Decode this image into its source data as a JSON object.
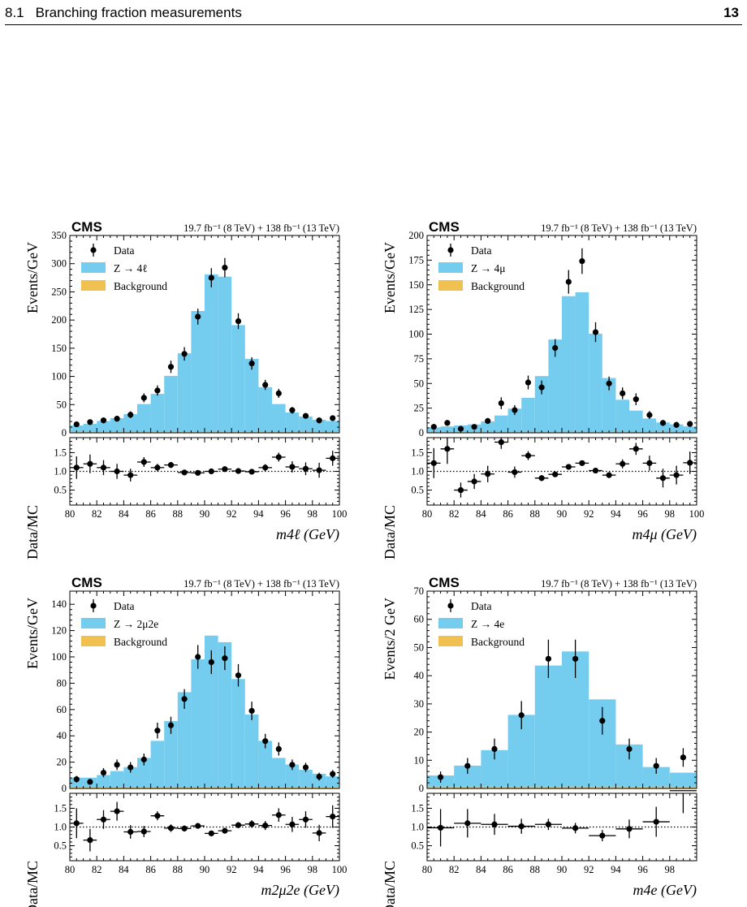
{
  "header": {
    "section_number": "8.1",
    "section_title": "Branching fraction measurements",
    "page_number": "13"
  },
  "chart_data": [
    {
      "type": "bar",
      "experiment": "CMS",
      "lumi": "19.7 fb⁻¹ (8 TeV) + 138 fb⁻¹ (13 TeV)",
      "ylabel": "Events/GeV",
      "ratio_ylabel": "Data/MC",
      "xlabel": "m4ℓ (GeV)",
      "xlim": [
        80,
        100
      ],
      "ylim": [
        0,
        350
      ],
      "yticks": [
        0,
        50,
        100,
        150,
        200,
        250,
        300,
        350
      ],
      "xticks": [
        80,
        82,
        84,
        86,
        88,
        90,
        92,
        94,
        96,
        98,
        100
      ],
      "ratio_ylim": [
        0.1,
        1.9
      ],
      "ratio_yticks": [
        0.5,
        1.0,
        1.5
      ],
      "ratio_ticklabels": [
        "0.5",
        "1.0",
        "1.5"
      ],
      "legend": [
        "Data",
        "Z → 4ℓ",
        "Background"
      ],
      "legend_position": "top-left",
      "colors": {
        "signal": "#74cdee",
        "background": "#f0c050",
        "data": "#000000"
      },
      "bin_edges": [
        80,
        81,
        82,
        83,
        84,
        85,
        86,
        87,
        88,
        89,
        90,
        91,
        92,
        93,
        94,
        95,
        96,
        97,
        98,
        99,
        100
      ],
      "signal": [
        12,
        15,
        20,
        25,
        32,
        50,
        68,
        100,
        140,
        215,
        280,
        276,
        190,
        130,
        80,
        50,
        35,
        28,
        22,
        20
      ],
      "background": [
        1,
        1,
        1,
        1,
        1,
        1,
        1,
        1,
        1,
        1,
        1,
        1,
        1,
        1,
        1,
        1,
        1,
        1,
        1,
        1
      ],
      "data_x": [
        80.5,
        81.5,
        82.5,
        83.5,
        84.5,
        85.5,
        86.5,
        87.5,
        88.5,
        89.5,
        90.5,
        91.5,
        92.5,
        93.5,
        94.5,
        95.5,
        96.5,
        97.5,
        98.5,
        99.5
      ],
      "data_y": [
        15,
        19,
        22,
        25,
        32,
        62,
        75,
        117,
        140,
        206,
        275,
        293,
        198,
        123,
        85,
        70,
        40,
        30,
        22,
        26
      ],
      "data_err": [
        4,
        4,
        5,
        5,
        6,
        8,
        9,
        11,
        12,
        14,
        17,
        17,
        14,
        11,
        9,
        8,
        6,
        5,
        5,
        5
      ],
      "ratio": [
        1.1,
        1.2,
        1.1,
        1.0,
        0.9,
        1.25,
        1.1,
        1.17,
        0.97,
        0.96,
        1.0,
        1.06,
        1.01,
        0.99,
        1.1,
        1.38,
        1.12,
        1.07,
        1.03,
        1.35
      ],
      "ratio_err": [
        0.3,
        0.25,
        0.2,
        0.2,
        0.17,
        0.13,
        0.1,
        0.08,
        0.06,
        0.05,
        0.05,
        0.05,
        0.06,
        0.07,
        0.09,
        0.12,
        0.15,
        0.17,
        0.2,
        0.2
      ]
    },
    {
      "type": "bar",
      "experiment": "CMS",
      "lumi": "19.7 fb⁻¹ (8 TeV) + 138 fb⁻¹ (13 TeV)",
      "ylabel": "Events/GeV",
      "ratio_ylabel": "Data/MC",
      "xlabel": "m4μ (GeV)",
      "xlim": [
        80,
        100
      ],
      "ylim": [
        0,
        200
      ],
      "yticks": [
        0,
        25,
        50,
        75,
        100,
        125,
        150,
        175,
        200
      ],
      "xticks": [
        80,
        82,
        84,
        86,
        88,
        90,
        92,
        94,
        96,
        98,
        100
      ],
      "ratio_ylim": [
        0.1,
        1.9
      ],
      "ratio_yticks": [
        0.5,
        1.0,
        1.5
      ],
      "ratio_ticklabels": [
        "0.5",
        "1.0",
        "1.5"
      ],
      "legend": [
        "Data",
        "Z → 4μ",
        "Background"
      ],
      "legend_position": "top-left",
      "colors": {
        "signal": "#74cdee",
        "background": "#f0c050",
        "data": "#000000"
      },
      "bin_edges": [
        80,
        81,
        82,
        83,
        84,
        85,
        86,
        87,
        88,
        89,
        90,
        91,
        92,
        93,
        94,
        95,
        96,
        97,
        98,
        99,
        100
      ],
      "signal": [
        5,
        6,
        7,
        8,
        11,
        17,
        24,
        35,
        57,
        94,
        138,
        142,
        100,
        55,
        33,
        22,
        14,
        10,
        8,
        6
      ],
      "background": [
        0.5,
        0.5,
        0.5,
        0.5,
        0.5,
        0.5,
        0.5,
        0.5,
        0.5,
        0.5,
        0.5,
        0.5,
        0.5,
        0.5,
        0.5,
        0.5,
        0.5,
        0.5,
        0.5,
        0.5
      ],
      "data_x": [
        80.5,
        81.5,
        82.5,
        83.5,
        84.5,
        85.5,
        86.5,
        87.5,
        88.5,
        89.5,
        90.5,
        91.5,
        92.5,
        93.5,
        94.5,
        95.5,
        96.5,
        97.5,
        98.5,
        99.5
      ],
      "data_y": [
        6,
        10,
        4,
        6,
        12,
        30,
        23,
        51,
        46,
        86,
        153,
        174,
        102,
        50,
        40,
        34,
        18,
        10,
        8,
        9
      ],
      "data_err": [
        3,
        3,
        2,
        2,
        3,
        6,
        5,
        7,
        7,
        9,
        12,
        13,
        10,
        7,
        6,
        6,
        4,
        3,
        3,
        3
      ],
      "ratio": [
        1.22,
        1.6,
        0.5,
        0.73,
        0.93,
        1.78,
        0.98,
        1.42,
        0.82,
        0.92,
        1.12,
        1.22,
        1.02,
        0.9,
        1.2,
        1.6,
        1.22,
        0.82,
        0.9,
        1.23
      ],
      "ratio_err": [
        0.4,
        0.4,
        0.2,
        0.2,
        0.22,
        0.18,
        0.15,
        0.12,
        0.08,
        0.06,
        0.06,
        0.06,
        0.06,
        0.08,
        0.12,
        0.16,
        0.2,
        0.25,
        0.25,
        0.3
      ]
    },
    {
      "type": "bar",
      "experiment": "CMS",
      "lumi": "19.7 fb⁻¹ (8 TeV) + 138 fb⁻¹ (13 TeV)",
      "ylabel": "Events/GeV",
      "ratio_ylabel": "Data/MC",
      "xlabel": "m2μ2e (GeV)",
      "xlim": [
        80,
        100
      ],
      "ylim": [
        0,
        150
      ],
      "yticks": [
        0,
        20,
        40,
        60,
        80,
        100,
        120,
        140
      ],
      "xticks": [
        80,
        82,
        84,
        86,
        88,
        90,
        92,
        94,
        96,
        98,
        100
      ],
      "ratio_ylim": [
        0.1,
        1.9
      ],
      "ratio_yticks": [
        0.5,
        1.0,
        1.5
      ],
      "ratio_ticklabels": [
        "0.5",
        "1.0",
        "1.5"
      ],
      "legend": [
        "Data",
        "Z → 2μ2e",
        "Background"
      ],
      "legend_position": "top-left",
      "colors": {
        "signal": "#74cdee",
        "background": "#f0c050",
        "data": "#000000"
      },
      "bin_edges": [
        80,
        81,
        82,
        83,
        84,
        85,
        86,
        87,
        88,
        89,
        90,
        91,
        92,
        93,
        94,
        95,
        96,
        97,
        98,
        99,
        100
      ],
      "signal": [
        7,
        7,
        9,
        12,
        15,
        22,
        35,
        50,
        72,
        97,
        115,
        110,
        82,
        55,
        35,
        22,
        17,
        13,
        10,
        8
      ],
      "background": [
        1.2,
        1.2,
        1.2,
        1.2,
        1.2,
        1.2,
        1.2,
        1.2,
        1.2,
        1.2,
        1.2,
        1.2,
        1.2,
        1.2,
        1.2,
        1.2,
        1.2,
        1.2,
        1.2,
        1.2
      ],
      "data_x": [
        80.5,
        81.5,
        82.5,
        83.5,
        84.5,
        85.5,
        86.5,
        87.5,
        88.5,
        89.5,
        90.5,
        91.5,
        92.5,
        93.5,
        94.5,
        95.5,
        96.5,
        97.5,
        98.5,
        99.5
      ],
      "data_y": [
        7,
        5,
        12,
        18,
        16,
        22,
        44,
        48,
        68,
        100,
        96,
        99,
        86,
        59,
        36,
        30,
        18,
        16,
        9,
        11
      ],
      "data_err": [
        2.5,
        2,
        3.5,
        4,
        4,
        4.5,
        6,
        6.5,
        7.5,
        9,
        9,
        9,
        8.5,
        7,
        5.5,
        5,
        4,
        3.5,
        3,
        3
      ],
      "ratio": [
        1.1,
        0.65,
        1.2,
        1.42,
        0.87,
        0.88,
        1.3,
        0.97,
        0.96,
        1.03,
        0.83,
        0.9,
        1.05,
        1.08,
        1.04,
        1.32,
        1.07,
        1.2,
        0.84,
        1.28
      ],
      "ratio_err": [
        0.4,
        0.3,
        0.25,
        0.25,
        0.18,
        0.15,
        0.12,
        0.1,
        0.08,
        0.07,
        0.06,
        0.06,
        0.08,
        0.1,
        0.12,
        0.18,
        0.2,
        0.22,
        0.22,
        0.3
      ]
    },
    {
      "type": "bar",
      "experiment": "CMS",
      "lumi": "19.7 fb⁻¹ (8 TeV) + 138 fb⁻¹ (13 TeV)",
      "ylabel": "Events/2 GeV",
      "ratio_ylabel": "Data/MC",
      "xlabel": "m4e (GeV)",
      "xlim": [
        80,
        100
      ],
      "ylim": [
        0,
        70
      ],
      "yticks": [
        0,
        10,
        20,
        30,
        40,
        50,
        60,
        70
      ],
      "xticks": [
        80,
        82,
        84,
        86,
        88,
        90,
        92,
        94,
        96,
        98
      ],
      "ratio_ylim": [
        0.1,
        1.9
      ],
      "ratio_yticks": [
        0.5,
        1.0,
        1.5
      ],
      "ratio_ticklabels": [
        "0.5",
        "1.0",
        "1.5"
      ],
      "legend": [
        "Data",
        "Z → 4e",
        "Background"
      ],
      "legend_position": "top-left",
      "colors": {
        "signal": "#74cdee",
        "background": "#f0c050",
        "data": "#000000"
      },
      "bin_edges": [
        80,
        82,
        84,
        86,
        88,
        90,
        92,
        94,
        96,
        98,
        100
      ],
      "signal": [
        4,
        7.5,
        13,
        25.5,
        43,
        48,
        31,
        15,
        7,
        5
      ],
      "background": [
        0.6,
        0.6,
        0.6,
        0.6,
        0.6,
        0.6,
        0.6,
        0.6,
        0.6,
        0.6
      ],
      "data_x": [
        81,
        83,
        85,
        87,
        89,
        91,
        93,
        95,
        97,
        99
      ],
      "data_y": [
        4,
        8,
        14,
        26,
        46,
        46,
        24,
        14,
        8,
        11
      ],
      "data_err": [
        2,
        2.8,
        3.7,
        5,
        6.8,
        6.8,
        4.9,
        3.7,
        2.8,
        3.3
      ],
      "ratio": [
        0.98,
        1.1,
        1.07,
        1.02,
        1.07,
        0.97,
        0.77,
        0.95,
        1.14,
        1.97
      ],
      "ratio_err": [
        0.5,
        0.38,
        0.28,
        0.2,
        0.15,
        0.14,
        0.15,
        0.25,
        0.4,
        0.6
      ]
    }
  ]
}
